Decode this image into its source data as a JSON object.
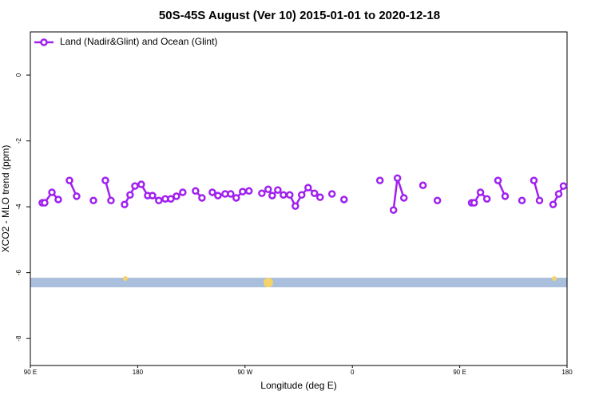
{
  "chart_data": {
    "type": "line",
    "title": "50S-45S August (Ver 10)   2015-01-01 to 2020-12-18",
    "x_label": "Longitude (deg E)",
    "y_label": "XCO2 - MLO trend (ppm)",
    "xlim": [
      90,
      540
    ],
    "xticks": [
      {
        "value": 90,
        "label": "90 E"
      },
      180,
      {
        "value": 270,
        "label": "90 W"
      },
      {
        "value": 360,
        "label": "0"
      },
      {
        "value": 450,
        "label": "90 E"
      },
      {
        "value": 540,
        "label": "180"
      }
    ],
    "ylim": [
      -8.82,
      1.31
    ],
    "yticks": [
      0,
      -2,
      -4,
      -6,
      -8
    ],
    "legend": "top-left",
    "series": [
      {
        "name": "Land (Nadir&Glint) and Ocean (Glint)",
        "color": "#a020f0",
        "x": [
          100.0,
          102.0,
          108.1,
          113.4,
          null,
          122.8,
          128.8,
          null,
          142.9,
          null,
          152.9,
          157.6,
          null,
          169.0,
          173.6,
          177.7,
          183.0,
          188.4,
          192.4,
          197.7,
          203.1,
          207.8,
          212.5,
          217.8,
          null,
          228.5,
          233.9,
          null,
          242.6,
          247.3,
          253.3,
          258.0,
          262.6,
          268.0,
          273.3,
          null,
          284.1,
          289.4,
          292.8,
          297.5,
          302.2,
          307.5,
          312.2,
          317.5,
          322.9,
          328.2,
          332.9,
          null,
          342.9,
          null,
          353.0,
          null,
          383.1,
          null,
          394.5,
          397.8,
          403.2,
          null,
          419.2,
          null,
          431.3,
          null,
          460.0,
          462.1,
          467.4,
          472.8,
          null,
          482.1,
          488.1,
          null,
          502.2,
          null,
          512.2,
          516.9,
          null,
          528.3,
          533.0,
          537.0
        ],
        "values": [
          -3.88,
          -3.88,
          -3.56,
          -3.78,
          null,
          -3.2,
          -3.68,
          null,
          -3.81,
          null,
          -3.2,
          -3.81,
          null,
          -3.93,
          -3.64,
          -3.37,
          -3.32,
          -3.66,
          -3.66,
          -3.81,
          -3.76,
          -3.76,
          -3.68,
          -3.56,
          null,
          -3.52,
          -3.73,
          null,
          -3.56,
          -3.66,
          -3.61,
          -3.61,
          -3.73,
          -3.54,
          -3.52,
          null,
          -3.59,
          -3.47,
          -3.66,
          -3.49,
          -3.64,
          -3.64,
          -3.98,
          -3.64,
          -3.42,
          -3.59,
          -3.71,
          null,
          -3.61,
          null,
          -3.78,
          null,
          -3.2,
          null,
          -4.1,
          -3.13,
          -3.73,
          null,
          -3.35,
          null,
          -3.81,
          null,
          -3.88,
          -3.88,
          -3.56,
          -3.76,
          null,
          -3.2,
          -3.68,
          null,
          -3.81,
          null,
          -3.2,
          -3.81,
          null,
          -3.93,
          -3.61,
          -3.37
        ]
      }
    ]
  }
}
